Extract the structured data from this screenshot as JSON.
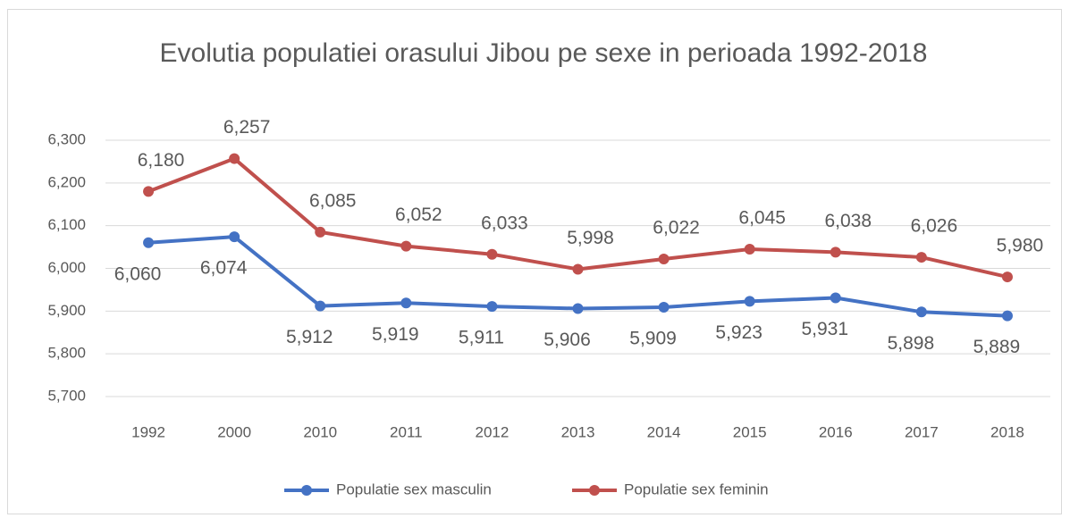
{
  "chart_data": {
    "type": "line",
    "title": "Evolutia populatiei orasului Jibou pe sexe in perioada 1992-2018",
    "categories": [
      "1992",
      "2000",
      "2010",
      "2011",
      "2012",
      "2013",
      "2014",
      "2015",
      "2016",
      "2017",
      "2018"
    ],
    "series": [
      {
        "name": "Populatie sex masculin",
        "color": "#4472c4",
        "values": [
          6060,
          6074,
          5912,
          5919,
          5911,
          5906,
          5909,
          5923,
          5931,
          5898,
          5889
        ],
        "value_labels": [
          "6,060",
          "6,074",
          "5,912",
          "5,919",
          "5,911",
          "5,906",
          "5,909",
          "5,923",
          "5,931",
          "5,898",
          "5,889"
        ]
      },
      {
        "name": "Populatie sex feminin",
        "color": "#c0504d",
        "values": [
          6180,
          6257,
          6085,
          6052,
          6033,
          5998,
          6022,
          6045,
          6038,
          6026,
          5980
        ],
        "value_labels": [
          "6,180",
          "6,257",
          "6,085",
          "6,052",
          "6,033",
          "5,998",
          "6,022",
          "6,045",
          "6,038",
          "6,026",
          "5,980"
        ]
      }
    ],
    "ylim": [
      5700,
      6300
    ],
    "yticks": [
      {
        "value": 5700,
        "label": "5,700"
      },
      {
        "value": 5800,
        "label": "5,800"
      },
      {
        "value": 5900,
        "label": "5,900"
      },
      {
        "value": 6000,
        "label": "6,000"
      },
      {
        "value": 6100,
        "label": "6,100"
      },
      {
        "value": 6200,
        "label": "6,200"
      },
      {
        "value": 6300,
        "label": "6,300"
      }
    ],
    "grid": true,
    "legend": "bottom"
  }
}
